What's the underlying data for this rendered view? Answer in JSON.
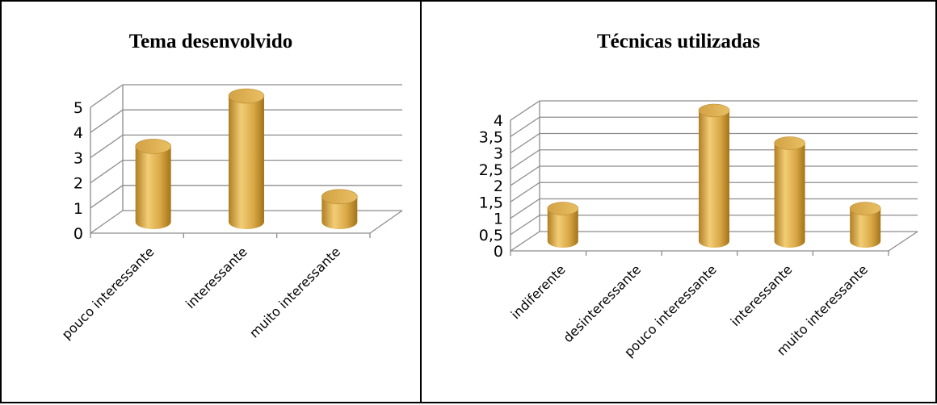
{
  "chart_data": [
    {
      "type": "bar",
      "title": "Tema desenvolvido",
      "categories": [
        "pouco interessante",
        "interessante",
        "muito interessante"
      ],
      "values": [
        3,
        5,
        1
      ],
      "ylim": [
        0,
        5
      ],
      "yticks": [
        "0",
        "1",
        "2",
        "3",
        "4",
        "5"
      ],
      "grid": true,
      "bar_shape": "cylinder",
      "bar_color": "#D9A846"
    },
    {
      "type": "bar",
      "title": "Técnicas utilizadas",
      "categories": [
        "indiferente",
        "desinteressante",
        "pouco interessante",
        "interessante",
        "muito interessante"
      ],
      "values": [
        1,
        0,
        4,
        3,
        1
      ],
      "ylim": [
        0,
        4
      ],
      "yticks": [
        "0",
        "0,5",
        "1",
        "1,5",
        "2",
        "2,5",
        "3",
        "3,5",
        "4"
      ],
      "grid": true,
      "bar_shape": "cylinder",
      "bar_color": "#D9A846"
    }
  ]
}
